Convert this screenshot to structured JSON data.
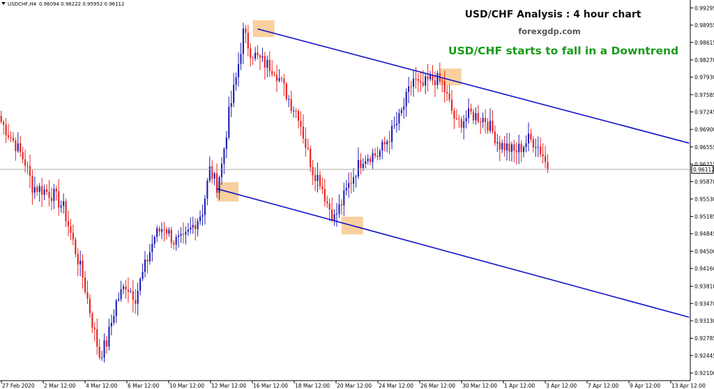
{
  "header": {
    "symbol_label": "USDCHF,H4",
    "ohlc": "0.96094 0.96222 0.95952 0.96112"
  },
  "annotations": {
    "title": "USD/CHF Analysis : 4 hour chart",
    "source": "forexgdp.com",
    "headline": "USD/CHF starts to fall in a Downtrend"
  },
  "colors": {
    "bull": "#1f1fb4",
    "bear": "#e8221e",
    "channel": "#1010c8",
    "highlight": "#f7c88e",
    "headline": "#1a9a1a",
    "text": "#111111",
    "axis": "#000000"
  },
  "chart_data": {
    "type": "candlestick",
    "symbol": "USDCHF",
    "timeframe": "H4",
    "current_price": 0.96112,
    "ylim": [
      0.9195,
      0.9945
    ],
    "y_ticks": [
      "0.99295",
      "0.98955",
      "0.98615",
      "0.98270",
      "0.97930",
      "0.97585",
      "0.97245",
      "0.96900",
      "0.96555",
      "0.96215",
      "0.95870",
      "0.95530",
      "0.95185",
      "0.94845",
      "0.94500",
      "0.94160",
      "0.93810",
      "0.93470",
      "0.93130",
      "0.92785",
      "0.92445",
      "0.92100"
    ],
    "x_ticks": [
      "27 Feb 2020",
      "2 Mar 12:00",
      "4 Mar 12:00",
      "6 Mar 12:00",
      "10 Mar 12:00",
      "12 Mar 12:00",
      "16 Mar 12:00",
      "18 Mar 12:00",
      "20 Mar 12:00",
      "24 Mar 12:00",
      "26 Mar 12:00",
      "30 Mar 12:00",
      "1 Apr 12:00",
      "3 Apr 12:00",
      "7 Apr 12:00",
      "9 Apr 12:00",
      "13 Apr 12:00"
    ],
    "waypoints": [
      {
        "bar": 0,
        "price": 0.9705
      },
      {
        "bar": 6,
        "price": 0.966
      },
      {
        "bar": 10,
        "price": 0.9625
      },
      {
        "bar": 13,
        "price": 0.9578
      },
      {
        "bar": 18,
        "price": 0.957
      },
      {
        "bar": 22,
        "price": 0.956
      },
      {
        "bar": 26,
        "price": 0.9535
      },
      {
        "bar": 30,
        "price": 0.9468
      },
      {
        "bar": 34,
        "price": 0.94
      },
      {
        "bar": 38,
        "price": 0.931
      },
      {
        "bar": 41,
        "price": 0.9245
      },
      {
        "bar": 44,
        "price": 0.927
      },
      {
        "bar": 48,
        "price": 0.935
      },
      {
        "bar": 52,
        "price": 0.9385
      },
      {
        "bar": 56,
        "price": 0.936
      },
      {
        "bar": 60,
        "price": 0.942
      },
      {
        "bar": 64,
        "price": 0.948
      },
      {
        "bar": 68,
        "price": 0.95
      },
      {
        "bar": 72,
        "price": 0.947
      },
      {
        "bar": 76,
        "price": 0.947
      },
      {
        "bar": 80,
        "price": 0.95
      },
      {
        "bar": 84,
        "price": 0.953
      },
      {
        "bar": 87,
        "price": 0.961
      },
      {
        "bar": 90,
        "price": 0.958
      },
      {
        "bar": 92,
        "price": 0.962
      },
      {
        "bar": 95,
        "price": 0.972
      },
      {
        "bar": 98,
        "price": 0.979
      },
      {
        "bar": 101,
        "price": 0.988
      },
      {
        "bar": 104,
        "price": 0.9845
      },
      {
        "bar": 107,
        "price": 0.983
      },
      {
        "bar": 110,
        "price": 0.982
      },
      {
        "bar": 114,
        "price": 0.981
      },
      {
        "bar": 118,
        "price": 0.977
      },
      {
        "bar": 121,
        "price": 0.974
      },
      {
        "bar": 124,
        "price": 0.972
      },
      {
        "bar": 127,
        "price": 0.966
      },
      {
        "bar": 130,
        "price": 0.961
      },
      {
        "bar": 133,
        "price": 0.959
      },
      {
        "bar": 136,
        "price": 0.9545
      },
      {
        "bar": 139,
        "price": 0.9515
      },
      {
        "bar": 142,
        "price": 0.9545
      },
      {
        "bar": 145,
        "price": 0.958
      },
      {
        "bar": 148,
        "price": 0.961
      },
      {
        "bar": 151,
        "price": 0.9635
      },
      {
        "bar": 154,
        "price": 0.964
      },
      {
        "bar": 157,
        "price": 0.964
      },
      {
        "bar": 160,
        "price": 0.966
      },
      {
        "bar": 163,
        "price": 0.9685
      },
      {
        "bar": 166,
        "price": 0.971
      },
      {
        "bar": 169,
        "price": 0.975
      },
      {
        "bar": 172,
        "price": 0.979
      },
      {
        "bar": 175,
        "price": 0.977
      },
      {
        "bar": 178,
        "price": 0.9785
      },
      {
        "bar": 181,
        "price": 0.979
      },
      {
        "bar": 184,
        "price": 0.978
      },
      {
        "bar": 187,
        "price": 0.974
      },
      {
        "bar": 190,
        "price": 0.97
      },
      {
        "bar": 193,
        "price": 0.971
      },
      {
        "bar": 196,
        "price": 0.972
      },
      {
        "bar": 199,
        "price": 0.9715
      },
      {
        "bar": 202,
        "price": 0.971
      },
      {
        "bar": 205,
        "price": 0.9685
      },
      {
        "bar": 208,
        "price": 0.966
      },
      {
        "bar": 211,
        "price": 0.9655
      },
      {
        "bar": 214,
        "price": 0.9645
      },
      {
        "bar": 217,
        "price": 0.9655
      },
      {
        "bar": 220,
        "price": 0.967
      },
      {
        "bar": 223,
        "price": 0.9665
      },
      {
        "bar": 226,
        "price": 0.964
      },
      {
        "bar": 228,
        "price": 0.9611
      }
    ],
    "channel_lines": [
      {
        "name": "",
        "from": {
          "bar": 107,
          "price": 0.9888
        },
        "to": {
          "bar": 287,
          "price": 0.9663
        }
      },
      {
        "name": "",
        "from": {
          "bar": 90,
          "price": 0.9573
        },
        "to": {
          "bar": 287,
          "price": 0.932
        }
      }
    ],
    "highlight_zones": [
      {
        "bar_from": 105,
        "bar_to": 114,
        "price_from": 0.9872,
        "price_to": 0.9905
      },
      {
        "bar_from": 90,
        "bar_to": 99,
        "price_from": 0.9548,
        "price_to": 0.9586
      },
      {
        "bar_from": 142,
        "bar_to": 151,
        "price_from": 0.9483,
        "price_to": 0.9518
      },
      {
        "bar_from": 183,
        "bar_to": 192,
        "price_from": 0.9777,
        "price_to": 0.981
      }
    ],
    "xlabel": "",
    "ylabel": ""
  }
}
